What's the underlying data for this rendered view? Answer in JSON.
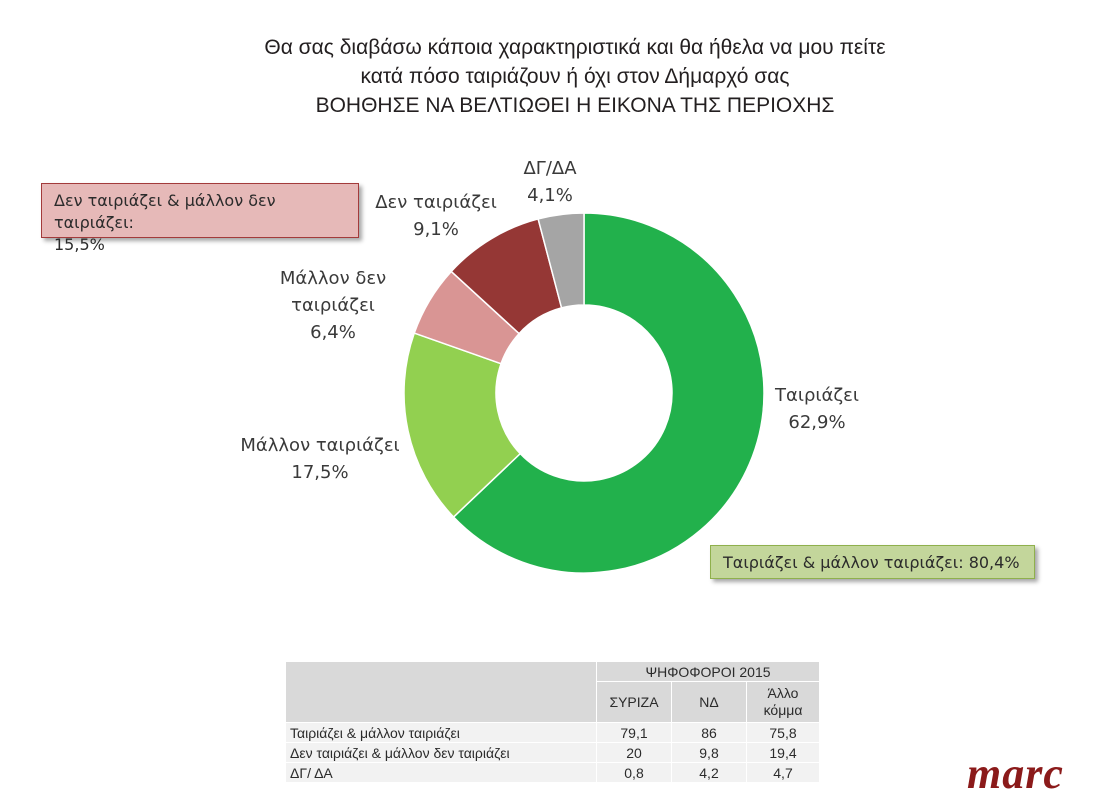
{
  "title": {
    "line1": "Θα σας διαβάσω κάποια χαρακτηριστικά και θα ήθελα να μου πείτε",
    "line2": "κατά πόσο ταιριάζουν ή όχι στον Δήμαρχό σας",
    "line3": "ΒΟΗΘΗΣΕ ΝΑ ΒΕΛΤΙΩΘΕΙ Η ΕΙΚΟΝΑ ΤΗΣ ΠΕΡΙΟΧΗΣ"
  },
  "chart_data": {
    "type": "pie",
    "variant": "donut",
    "categories": [
      "Ταιριάζει",
      "Μάλλον ταιριάζει",
      "Μάλλον δεν ταιριάζει",
      "Δεν ταιριάζει",
      "ΔΓ/ΔΑ"
    ],
    "values": [
      62.9,
      17.5,
      6.4,
      9.1,
      4.1
    ],
    "value_labels": [
      "62,9%",
      "17,5%",
      "6,4%",
      "9,1%",
      "4,1%"
    ],
    "label_lines": [
      [
        "Ταιριάζει",
        "62,9%"
      ],
      [
        "Μάλλον ταιριάζει",
        "17,5%"
      ],
      [
        "Μάλλον δεν",
        "ταιριάζει",
        "6,4%"
      ],
      [
        "Δεν ταιριάζει",
        "9,1%"
      ],
      [
        "ΔΓ/ΔΑ",
        "4,1%"
      ]
    ],
    "colors": [
      "#22b14c",
      "#92d050",
      "#d99594",
      "#953735",
      "#a5a5a5"
    ],
    "callouts": {
      "negative": [
        "Δεν ταιριάζει & μάλλον δεν ταιριάζει:",
        "15,5%"
      ],
      "positive": "Ταιριάζει & μάλλον ταιριάζει: 80,4%"
    }
  },
  "table": {
    "group_header": "ΨΗΦΟΦΟΡΟΙ 2015",
    "columns": [
      "ΣΥΡΙΖΑ",
      "ΝΔ",
      "Άλλο κόμμα"
    ],
    "rows": [
      {
        "label": "Ταιριάζει & μάλλον ταιριάζει",
        "values": [
          "79,1",
          "86",
          "75,8"
        ]
      },
      {
        "label": "Δεν ταιριάζει & μάλλον δεν ταιριάζει",
        "values": [
          "20",
          "9,8",
          "19,4"
        ]
      },
      {
        "label": "ΔΓ/ ΔΑ",
        "values": [
          "0,8",
          "4,2",
          "4,7"
        ]
      }
    ]
  },
  "logo": "marc"
}
